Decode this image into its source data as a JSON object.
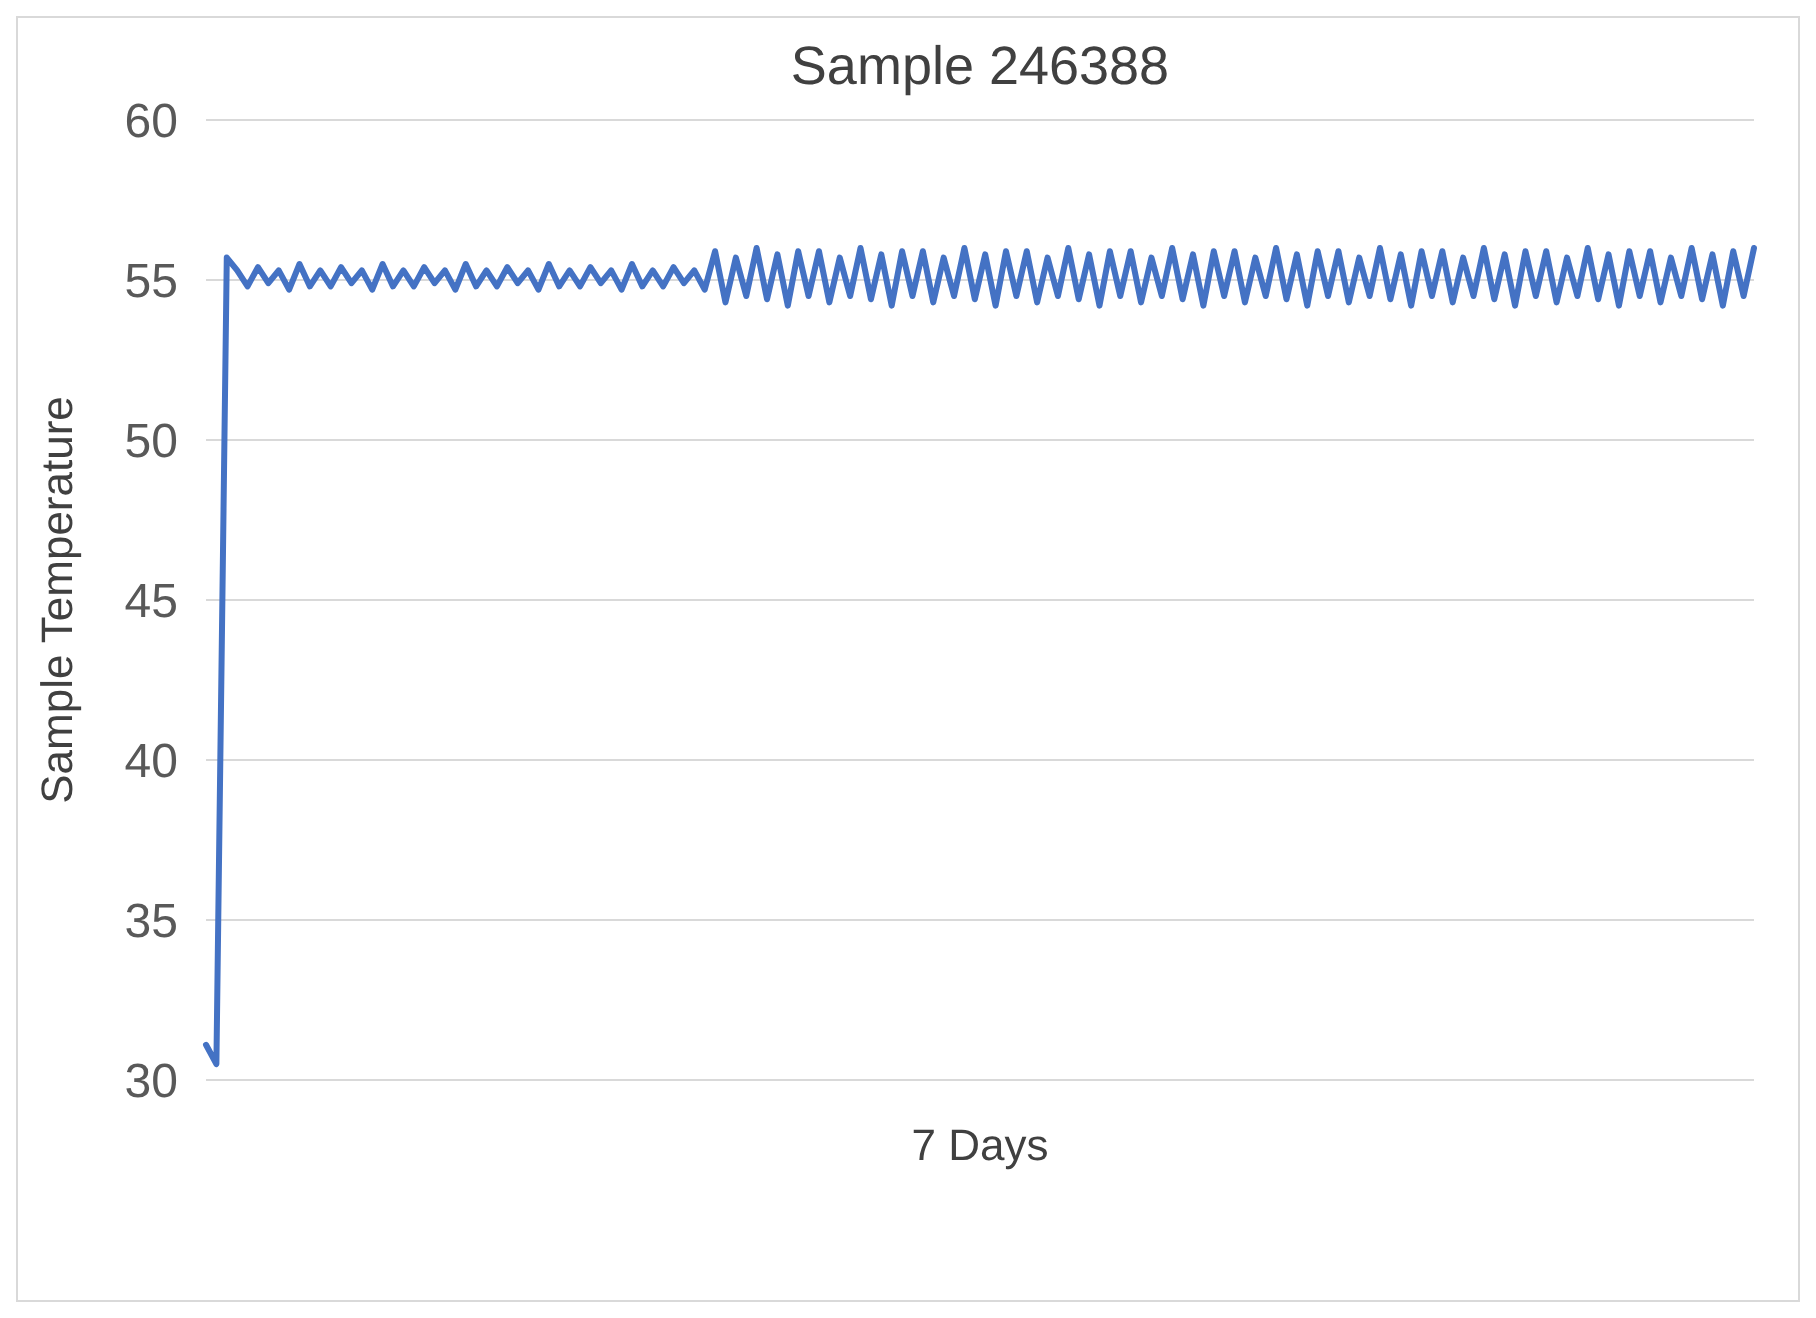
{
  "chart_data": {
    "type": "line",
    "title": "Sample 246388",
    "xlabel": "7 Days",
    "ylabel": "Sample Temperature",
    "categories": [
      null,
      null,
      null,
      null,
      null,
      null,
      null,
      null,
      null,
      null,
      null,
      null,
      null,
      null,
      null,
      null,
      null,
      null,
      null,
      null,
      null,
      null,
      null,
      null,
      null,
      null,
      null,
      null,
      null,
      null,
      null,
      null,
      null,
      null,
      null,
      null,
      null,
      null,
      null,
      null,
      null,
      null,
      null,
      null,
      null,
      null,
      null,
      null,
      null,
      null,
      null,
      null,
      null,
      null,
      null,
      null,
      null,
      null,
      null,
      null,
      null,
      null,
      null,
      null,
      null,
      null,
      null,
      null,
      null,
      null,
      null,
      null,
      null,
      null,
      null,
      null,
      null,
      null,
      null,
      null,
      null,
      null,
      null,
      null,
      null,
      null,
      null,
      null,
      null,
      null,
      null,
      null,
      null,
      null,
      null,
      null,
      null,
      null,
      null,
      null,
      null,
      null,
      null,
      null,
      null,
      null,
      null,
      null,
      null,
      null,
      null,
      null,
      null,
      null,
      null,
      null,
      null,
      null,
      null,
      null,
      null,
      null,
      null,
      null,
      null,
      null,
      null,
      null,
      null,
      null,
      null,
      null,
      null,
      null,
      null,
      null,
      null,
      null,
      null,
      null,
      null,
      null,
      null,
      null,
      null,
      null,
      null,
      null,
      null,
      null
    ],
    "series": [
      {
        "color": "#4472c4",
        "values": [
          31.1,
          30.5,
          55.7,
          55.3,
          54.8,
          55.4,
          54.9,
          55.3,
          54.7,
          55.5,
          54.8,
          55.3,
          54.8,
          55.4,
          54.9,
          55.3,
          54.7,
          55.5,
          54.8,
          55.3,
          54.8,
          55.4,
          54.9,
          55.3,
          54.7,
          55.5,
          54.8,
          55.3,
          54.8,
          55.4,
          54.9,
          55.3,
          54.7,
          55.5,
          54.8,
          55.3,
          54.8,
          55.4,
          54.9,
          55.3,
          54.7,
          55.5,
          54.8,
          55.3,
          54.8,
          55.4,
          54.9,
          55.3,
          54.7,
          55.9,
          54.3,
          55.7,
          54.5,
          56.0,
          54.4,
          55.8,
          54.2,
          55.9,
          54.5,
          55.9,
          54.3,
          55.7,
          54.5,
          56.0,
          54.4,
          55.8,
          54.2,
          55.9,
          54.5,
          55.9,
          54.3,
          55.7,
          54.5,
          56.0,
          54.4,
          55.8,
          54.2,
          55.9,
          54.5,
          55.9,
          54.3,
          55.7,
          54.5,
          56.0,
          54.4,
          55.8,
          54.2,
          55.9,
          54.5,
          55.9,
          54.3,
          55.7,
          54.5,
          56.0,
          54.4,
          55.8,
          54.2,
          55.9,
          54.5,
          55.9,
          54.3,
          55.7,
          54.5,
          56.0,
          54.4,
          55.8,
          54.2,
          55.9,
          54.5,
          55.9,
          54.3,
          55.7,
          54.5,
          56.0,
          54.4,
          55.8,
          54.2,
          55.9,
          54.5,
          55.9,
          54.3,
          55.7,
          54.5,
          56.0,
          54.4,
          55.8,
          54.2,
          55.9,
          54.5,
          55.9,
          54.3,
          55.7,
          54.5,
          56.0,
          54.4,
          55.8,
          54.2,
          55.9,
          54.5,
          55.9,
          54.3,
          55.7,
          54.5,
          56.0,
          54.4,
          55.8,
          54.2,
          55.9,
          54.5,
          56.0
        ]
      }
    ],
    "ylim": [
      30,
      60
    ],
    "yticks": [
      30,
      35,
      40,
      45,
      50,
      55,
      60
    ],
    "grid": "y",
    "tick_labels": "y"
  }
}
